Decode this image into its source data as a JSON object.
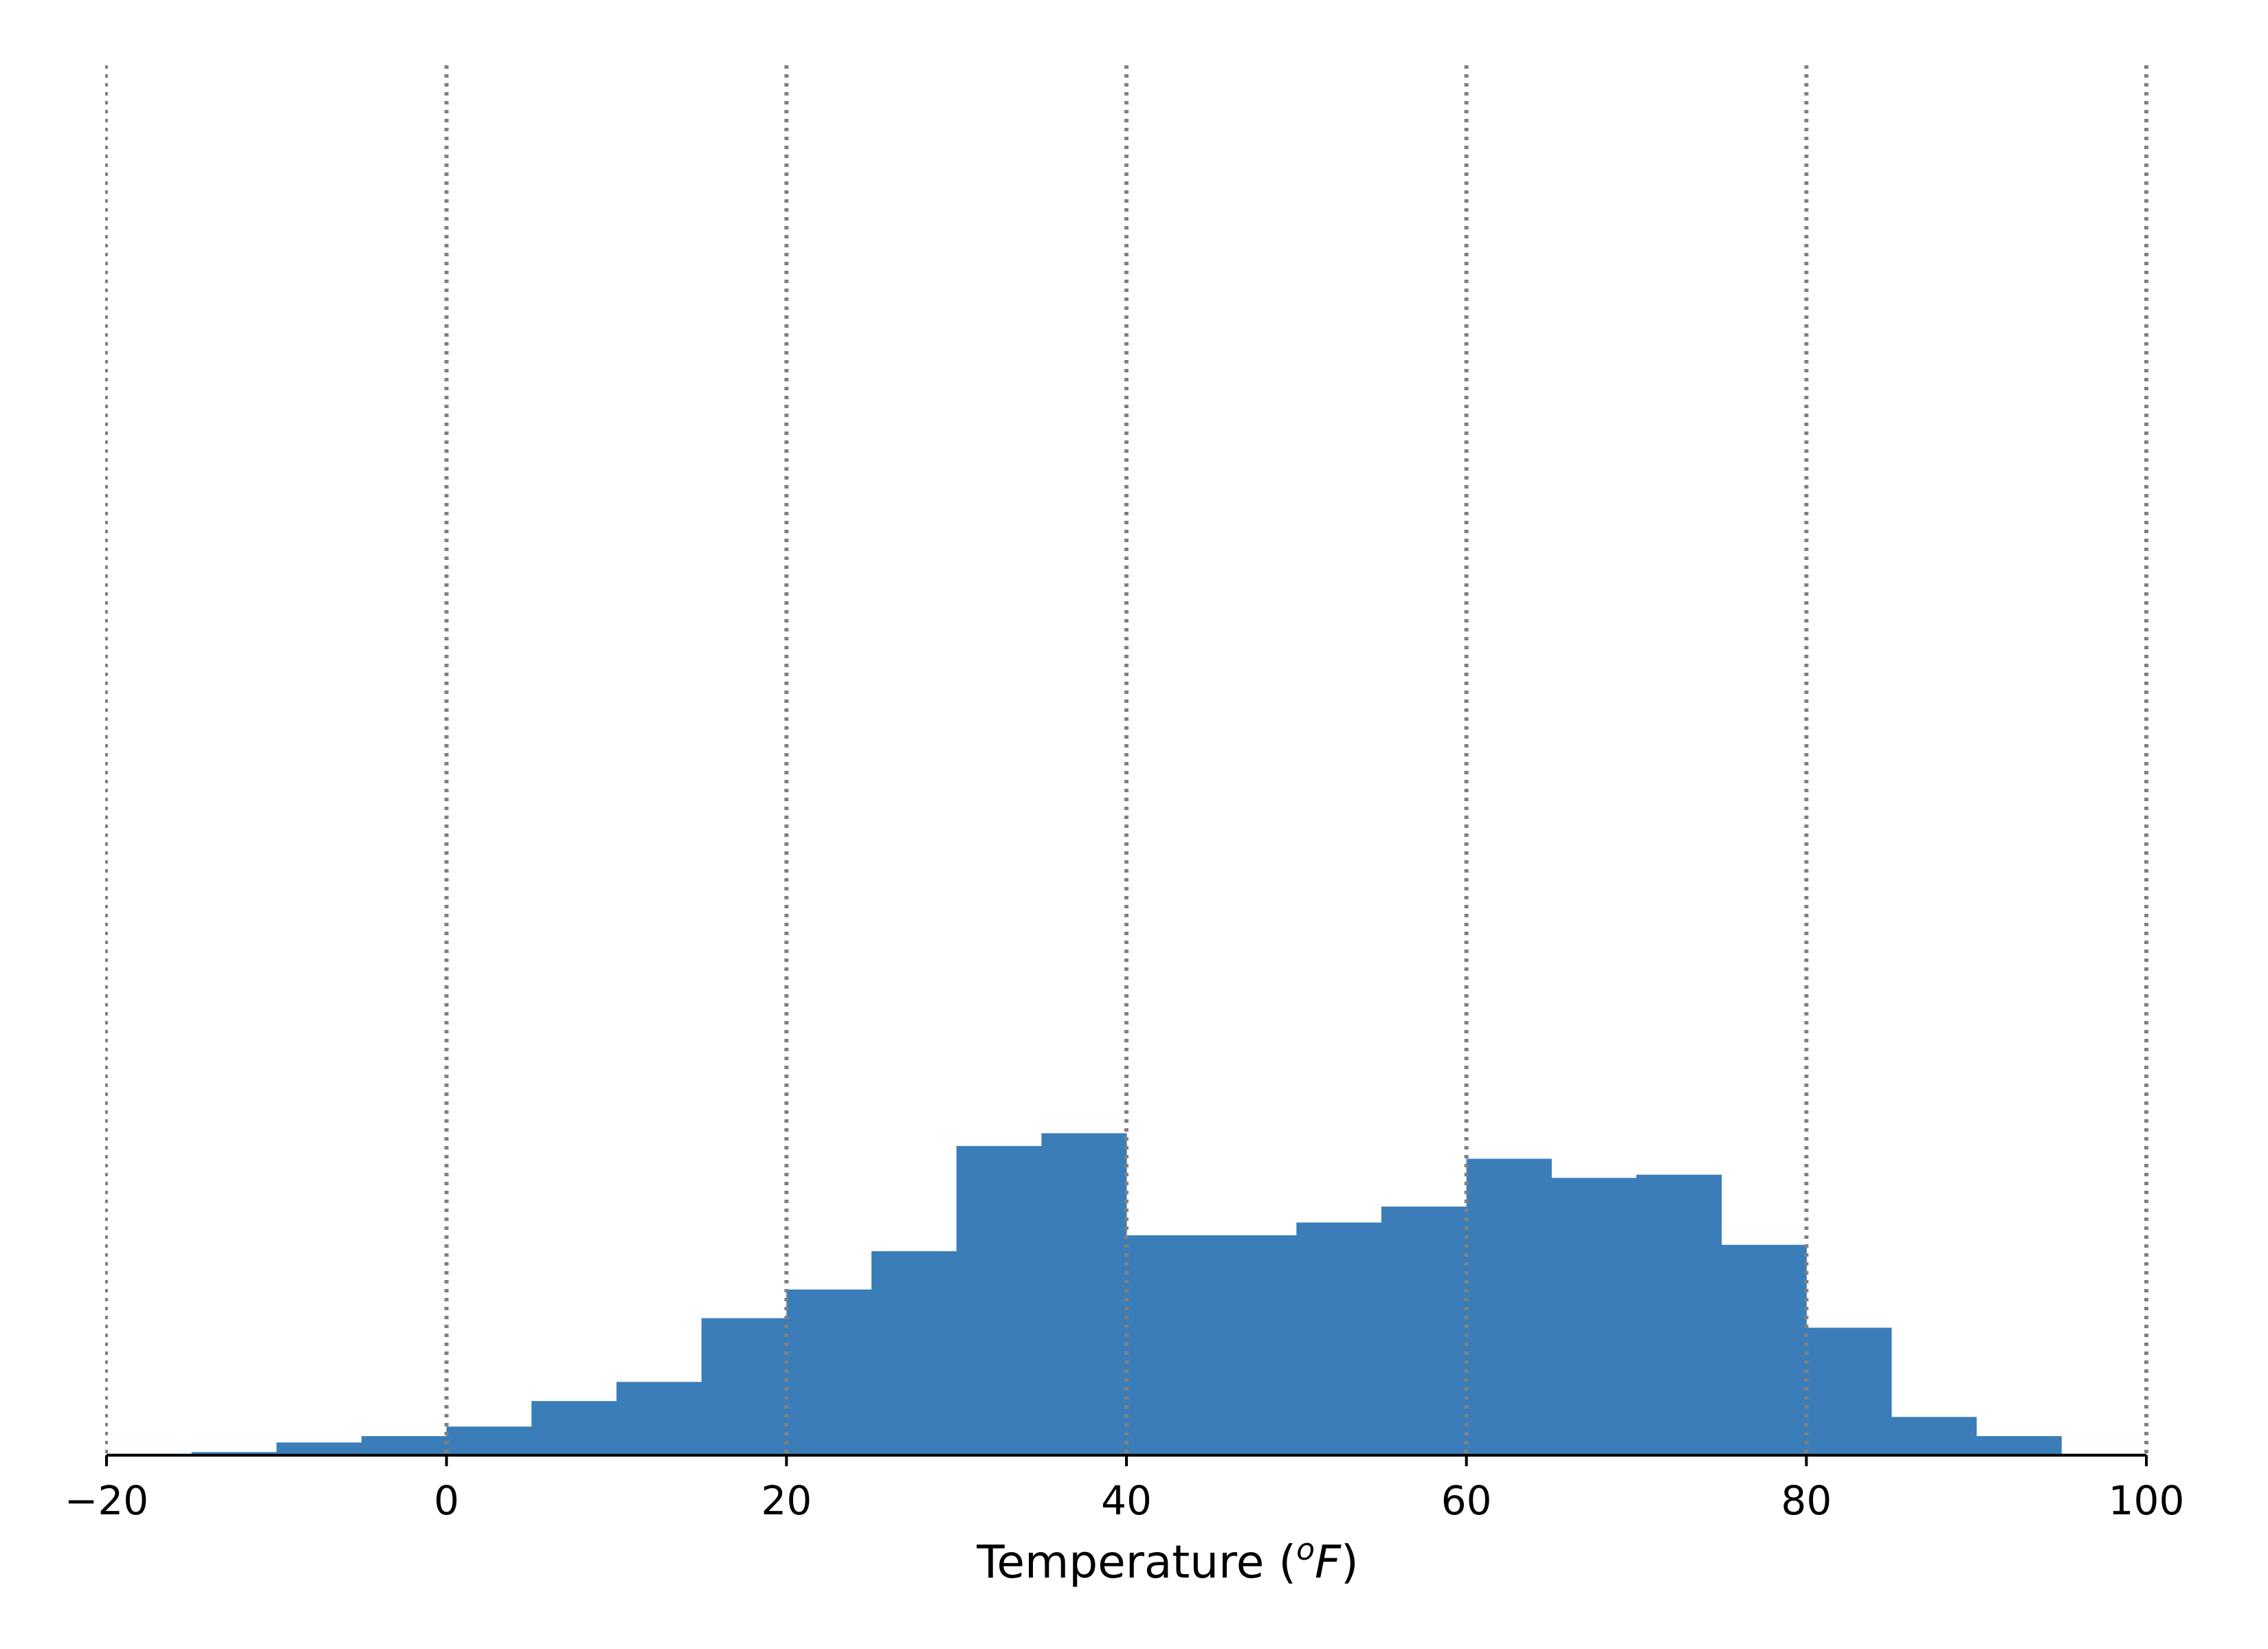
{
  "chart_data": {
    "type": "bar",
    "title": "",
    "xlabel": "Temperature (",
    "xlabel_unit_sup": "o",
    "xlabel_unit": "F",
    "xlabel_close": ")",
    "ylabel": "",
    "xlim": [
      -20,
      100
    ],
    "ylim": [
      0,
      0.0436
    ],
    "x_ticks": [
      -20,
      0,
      20,
      40,
      60,
      80,
      100
    ],
    "x_tick_labels": [
      "−20",
      "0",
      "20",
      "40",
      "60",
      "80",
      "100"
    ],
    "y_axis_visible": false,
    "grid": "vertical dotted lines at x ticks",
    "bin_width": 5,
    "bin_edges": [
      -20,
      -15,
      -10,
      -5,
      0,
      5,
      10,
      15,
      20,
      25,
      30,
      35,
      40,
      45,
      50,
      55,
      60,
      65,
      70,
      75,
      80,
      85,
      90,
      95,
      100
    ],
    "values": [
      5e-05,
      0.0001,
      0.0004,
      0.0006,
      0.0009,
      0.0017,
      0.0023,
      0.0043,
      0.0052,
      0.0064,
      0.0097,
      0.0101,
      0.0069,
      0.0069,
      0.0073,
      0.0078,
      0.0093,
      0.0087,
      0.0088,
      0.0066,
      0.004,
      0.0012,
      0.0006,
      5e-05
    ],
    "bar_color": "#3a7db8",
    "grid_color": "#808080"
  }
}
